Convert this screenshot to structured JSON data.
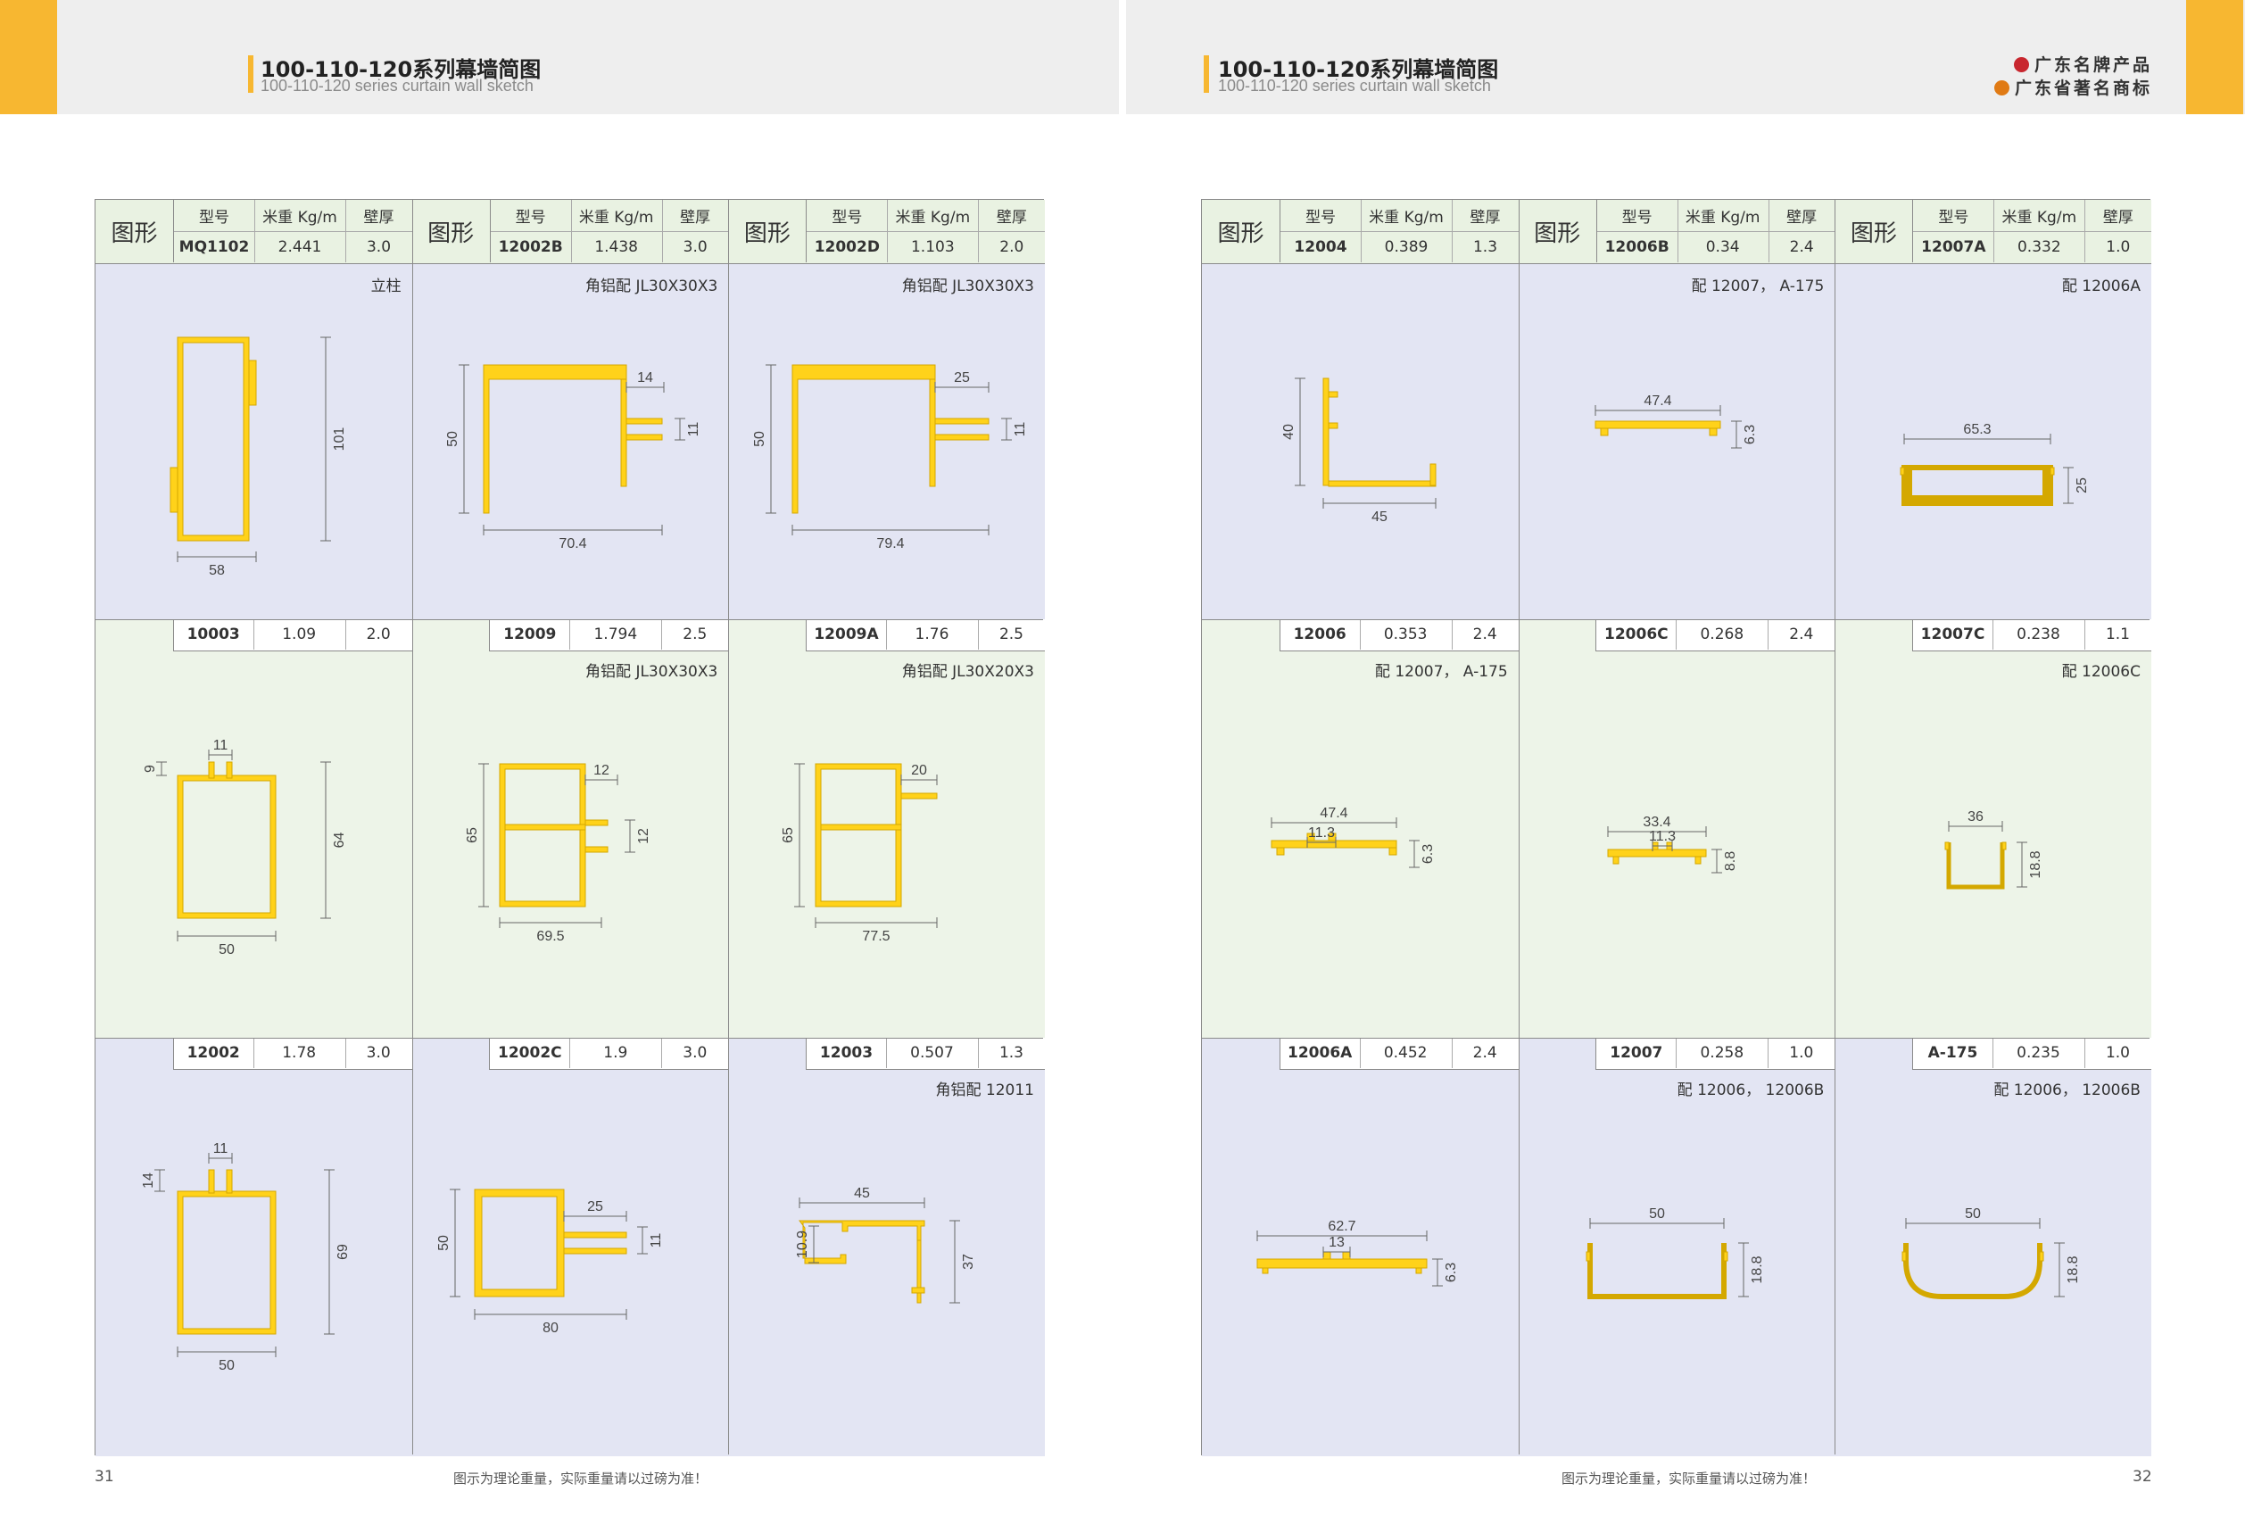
{
  "header": {
    "title_cn": "100-110-120系列幕墙简图",
    "title_en": "100-110-120 series curtain wall sketch",
    "brand1": "广东名牌产品",
    "brand2": "广东省著名商标"
  },
  "colors": {
    "accent": "#f7b731",
    "profile": "#ffd21a",
    "profile_edge": "#e0b000",
    "cell_blue": "#e3e5f3",
    "cell_green": "#edf4e8",
    "header_bg": "#e9f2e2"
  },
  "table_labels": {
    "shape": "图形",
    "model": "型号",
    "weight": "米重 Kg/m",
    "thickness": "壁厚"
  },
  "left": {
    "page_number": "31",
    "cells": [
      {
        "model": "MQ1102",
        "weight": "2.441",
        "thickness": "3.0",
        "note": "立柱",
        "dims": [
          "101",
          "58"
        ]
      },
      {
        "model": "12002B",
        "weight": "1.438",
        "thickness": "3.0",
        "note": "角铝配 JL30X30X3",
        "dims": [
          "14",
          "50",
          "11",
          "70.4"
        ]
      },
      {
        "model": "12002D",
        "weight": "1.103",
        "thickness": "2.0",
        "note": "角铝配 JL30X30X3",
        "dims": [
          "25",
          "50",
          "11",
          "79.4"
        ]
      },
      {
        "model": "10003",
        "weight": "1.09",
        "thickness": "2.0",
        "note": "",
        "dims": [
          "11",
          "9",
          "64",
          "50"
        ]
      },
      {
        "model": "12009",
        "weight": "1.794",
        "thickness": "2.5",
        "note": "角铝配 JL30X30X3",
        "dims": [
          "12",
          "65",
          "12",
          "69.5"
        ]
      },
      {
        "model": "12009A",
        "weight": "1.76",
        "thickness": "2.5",
        "note": "角铝配 JL30X20X3",
        "dims": [
          "20",
          "65",
          "77.5"
        ]
      },
      {
        "model": "12002",
        "weight": "1.78",
        "thickness": "3.0",
        "note": "",
        "dims": [
          "11",
          "14",
          "69",
          "50"
        ]
      },
      {
        "model": "12002C",
        "weight": "1.9",
        "thickness": "3.0",
        "note": "",
        "dims": [
          "25",
          "50",
          "11",
          "80"
        ]
      },
      {
        "model": "12003",
        "weight": "0.507",
        "thickness": "1.3",
        "note": "角铝配 12011",
        "dims": [
          "45",
          "10.9",
          "37"
        ]
      }
    ]
  },
  "right": {
    "page_number": "32",
    "cells": [
      {
        "model": "12004",
        "weight": "0.389",
        "thickness": "1.3",
        "note": "",
        "dims": [
          "40",
          "45"
        ]
      },
      {
        "model": "12006B",
        "weight": "0.34",
        "thickness": "2.4",
        "note": "配 12007， A-175",
        "dims": [
          "47.4",
          "6.3"
        ]
      },
      {
        "model": "12007A",
        "weight": "0.332",
        "thickness": "1.0",
        "note": "配 12006A",
        "dims": [
          "65.3",
          "25"
        ]
      },
      {
        "model": "12006",
        "weight": "0.353",
        "thickness": "2.4",
        "note": "配 12007， A-175",
        "dims": [
          "47.4",
          "11.3",
          "6.3"
        ]
      },
      {
        "model": "12006C",
        "weight": "0.268",
        "thickness": "2.4",
        "note": "",
        "dims": [
          "33.4",
          "11.3",
          "8.8"
        ]
      },
      {
        "model": "12007C",
        "weight": "0.238",
        "thickness": "1.1",
        "note": "配 12006C",
        "dims": [
          "36",
          "18.8"
        ]
      },
      {
        "model": "12006A",
        "weight": "0.452",
        "thickness": "2.4",
        "note": "",
        "dims": [
          "62.7",
          "13",
          "6.3"
        ]
      },
      {
        "model": "12007",
        "weight": "0.258",
        "thickness": "1.0",
        "note": "配 12006， 12006B",
        "dims": [
          "50",
          "18.8"
        ]
      },
      {
        "model": "A-175",
        "weight": "0.235",
        "thickness": "1.0",
        "note": "配 12006， 12006B",
        "dims": [
          "50",
          "18.8"
        ]
      }
    ]
  },
  "footer_note": "图示为理论重量，实际重量请以过磅为准！"
}
